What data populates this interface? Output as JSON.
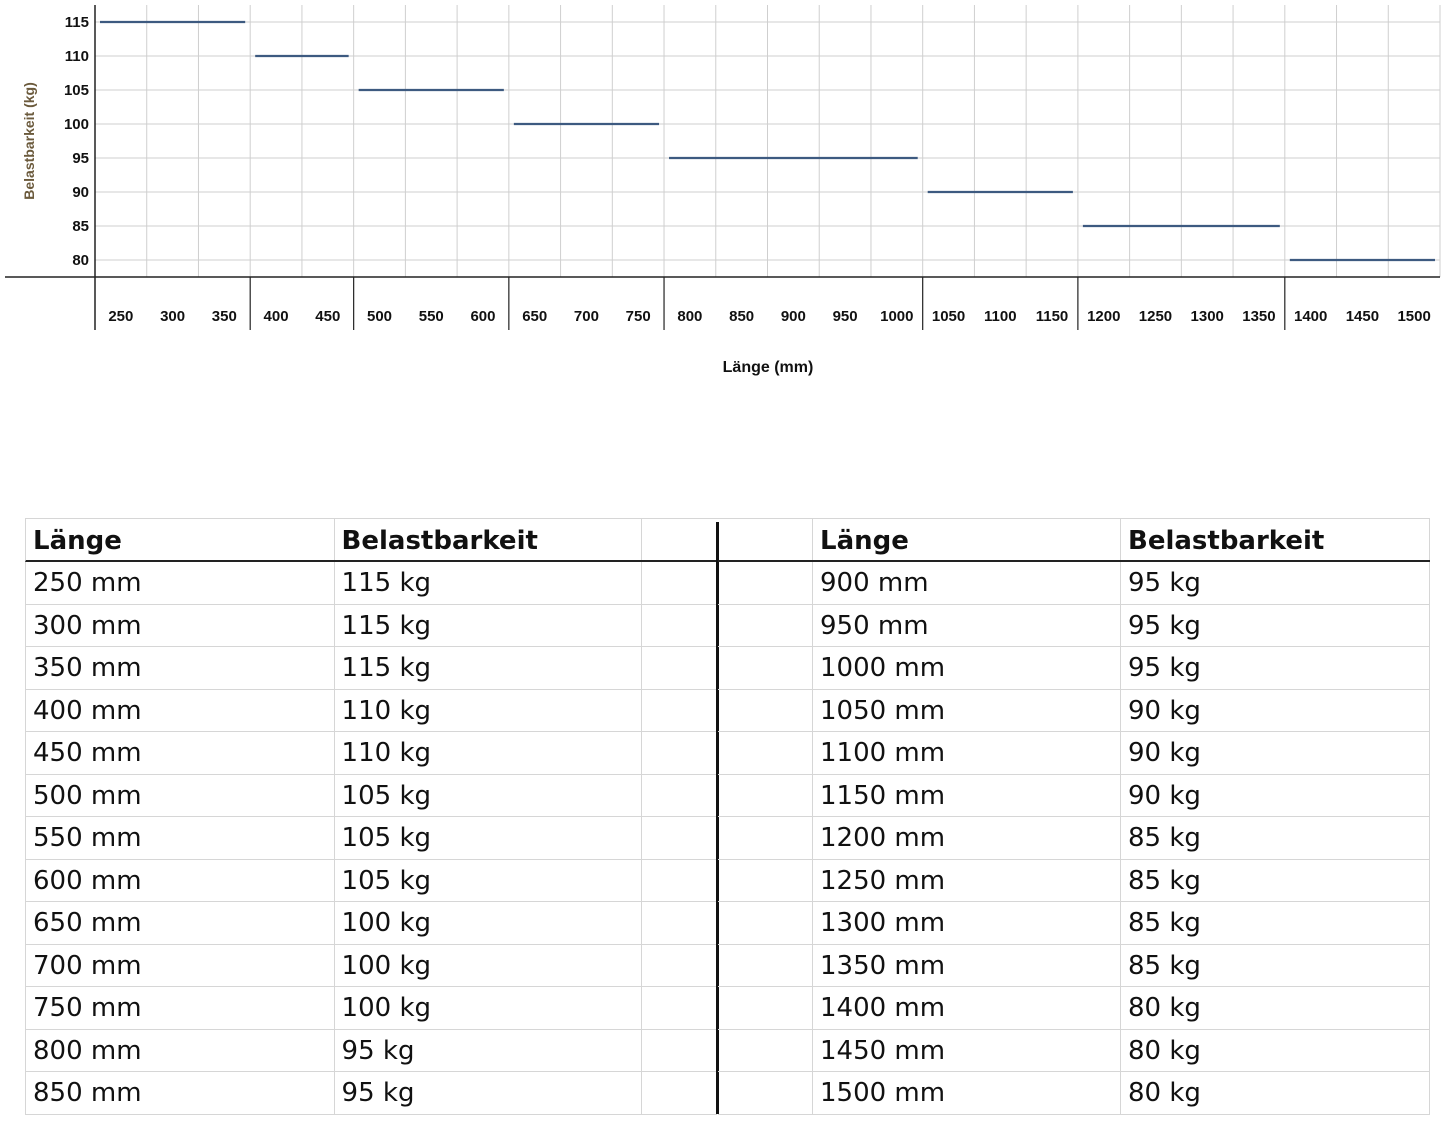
{
  "chart_data": {
    "type": "line",
    "style": "step",
    "xlabel": "Länge (mm)",
    "ylabel": "Belastbarkeit (kg)",
    "yticks": [
      115,
      110,
      105,
      100,
      95,
      90,
      85,
      80
    ],
    "ylim": [
      77.5,
      117.5
    ],
    "xticks": [
      250,
      300,
      350,
      400,
      450,
      500,
      550,
      600,
      650,
      700,
      750,
      800,
      850,
      900,
      950,
      1000,
      1050,
      1100,
      1150,
      1200,
      1250,
      1300,
      1350,
      1400,
      1450,
      1500
    ],
    "group_boundaries": [
      350,
      450,
      600,
      750,
      1000,
      1150,
      1350
    ],
    "grid": true,
    "series_color": "#3d5a80",
    "segments": [
      {
        "from": 250,
        "to": 350,
        "value": 115
      },
      {
        "from": 400,
        "to": 450,
        "value": 110
      },
      {
        "from": 500,
        "to": 600,
        "value": 105
      },
      {
        "from": 650,
        "to": 750,
        "value": 100
      },
      {
        "from": 800,
        "to": 1000,
        "value": 95
      },
      {
        "from": 1050,
        "to": 1150,
        "value": 90
      },
      {
        "from": 1200,
        "to": 1350,
        "value": 85
      },
      {
        "from": 1400,
        "to": 1500,
        "value": 80
      }
    ]
  },
  "table": {
    "header_length": "Länge",
    "header_load": "Belastbarkeit",
    "left_rows": [
      {
        "length": "250 mm",
        "load": "115 kg"
      },
      {
        "length": "300 mm",
        "load": "115 kg"
      },
      {
        "length": "350 mm",
        "load": "115 kg"
      },
      {
        "length": "400 mm",
        "load": "110 kg"
      },
      {
        "length": "450 mm",
        "load": "110 kg"
      },
      {
        "length": "500 mm",
        "load": "105 kg"
      },
      {
        "length": "550 mm",
        "load": "105 kg"
      },
      {
        "length": "600 mm",
        "load": "105 kg"
      },
      {
        "length": "650 mm",
        "load": "100 kg"
      },
      {
        "length": "700 mm",
        "load": "100 kg"
      },
      {
        "length": "750 mm",
        "load": "100 kg"
      },
      {
        "length": "800 mm",
        "load": "95 kg"
      },
      {
        "length": "850 mm",
        "load": "95 kg"
      }
    ],
    "right_rows": [
      {
        "length": "900 mm",
        "load": "95 kg"
      },
      {
        "length": "950 mm",
        "load": "95 kg"
      },
      {
        "length": "1000 mm",
        "load": "95 kg"
      },
      {
        "length": "1050 mm",
        "load": "90 kg"
      },
      {
        "length": "1100 mm",
        "load": "90 kg"
      },
      {
        "length": "1150 mm",
        "load": "90 kg"
      },
      {
        "length": "1200 mm",
        "load": "85 kg"
      },
      {
        "length": "1250 mm",
        "load": "85 kg"
      },
      {
        "length": "1300 mm",
        "load": "85 kg"
      },
      {
        "length": "1350 mm",
        "load": "85 kg"
      },
      {
        "length": "1400 mm",
        "load": "80 kg"
      },
      {
        "length": "1450 mm",
        "load": "80 kg"
      },
      {
        "length": "1500 mm",
        "load": "80 kg"
      }
    ]
  }
}
